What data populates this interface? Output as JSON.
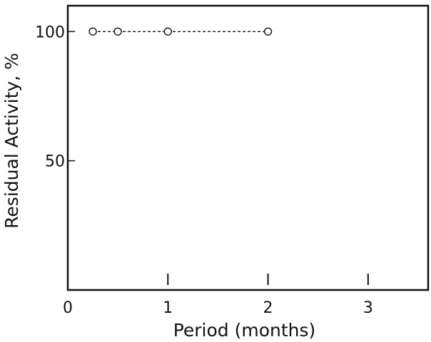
{
  "chart_data": {
    "type": "line",
    "xlabel": "Period (months)",
    "ylabel": "Residual Activity, %",
    "xlim": [
      0,
      3.6
    ],
    "ylim": [
      0,
      110
    ],
    "x_ticks": [
      0,
      1,
      2,
      3
    ],
    "x_tick_labels": [
      "0",
      "1",
      "2",
      "3"
    ],
    "y_ticks": [
      50,
      100
    ],
    "y_tick_labels": [
      "50",
      "100"
    ],
    "grid": false,
    "series": [
      {
        "line_style": "dashed",
        "marker": "open-circle",
        "points": [
          {
            "x": 0.25,
            "y": 100
          },
          {
            "x": 0.5,
            "y": 100
          },
          {
            "x": 1,
            "y": 100
          },
          {
            "x": 2,
            "y": 100
          }
        ]
      }
    ]
  }
}
